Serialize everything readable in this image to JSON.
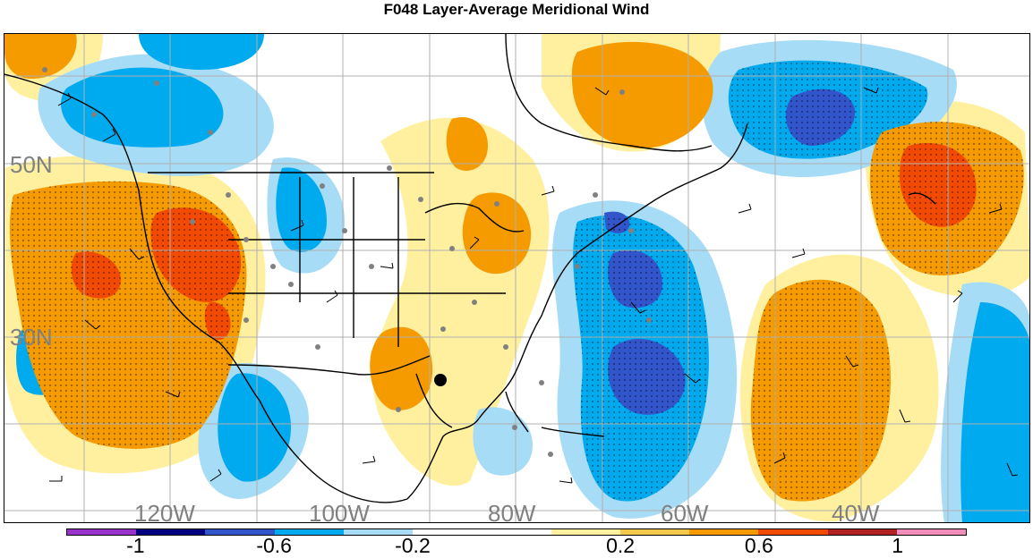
{
  "title": "F048 Layer-Average Meridional Wind",
  "map": {
    "lat_labels": [
      "50N",
      "30N"
    ],
    "lon_labels": [
      "120W",
      "100W",
      "80W",
      "60W",
      "40W"
    ]
  },
  "colorbar": {
    "colors": [
      "#9933cc",
      "#000080",
      "#3355cc",
      "#00aaee",
      "#a6dcf5",
      "#ffffff",
      "#ffffff",
      "#fff0a0",
      "#f2c94c",
      "#f59b00",
      "#f24a00",
      "#b22222",
      "#f28dbb"
    ],
    "labels": [
      "-1",
      "-0.6",
      "-0.2",
      "0.2",
      "0.6",
      "1"
    ]
  }
}
